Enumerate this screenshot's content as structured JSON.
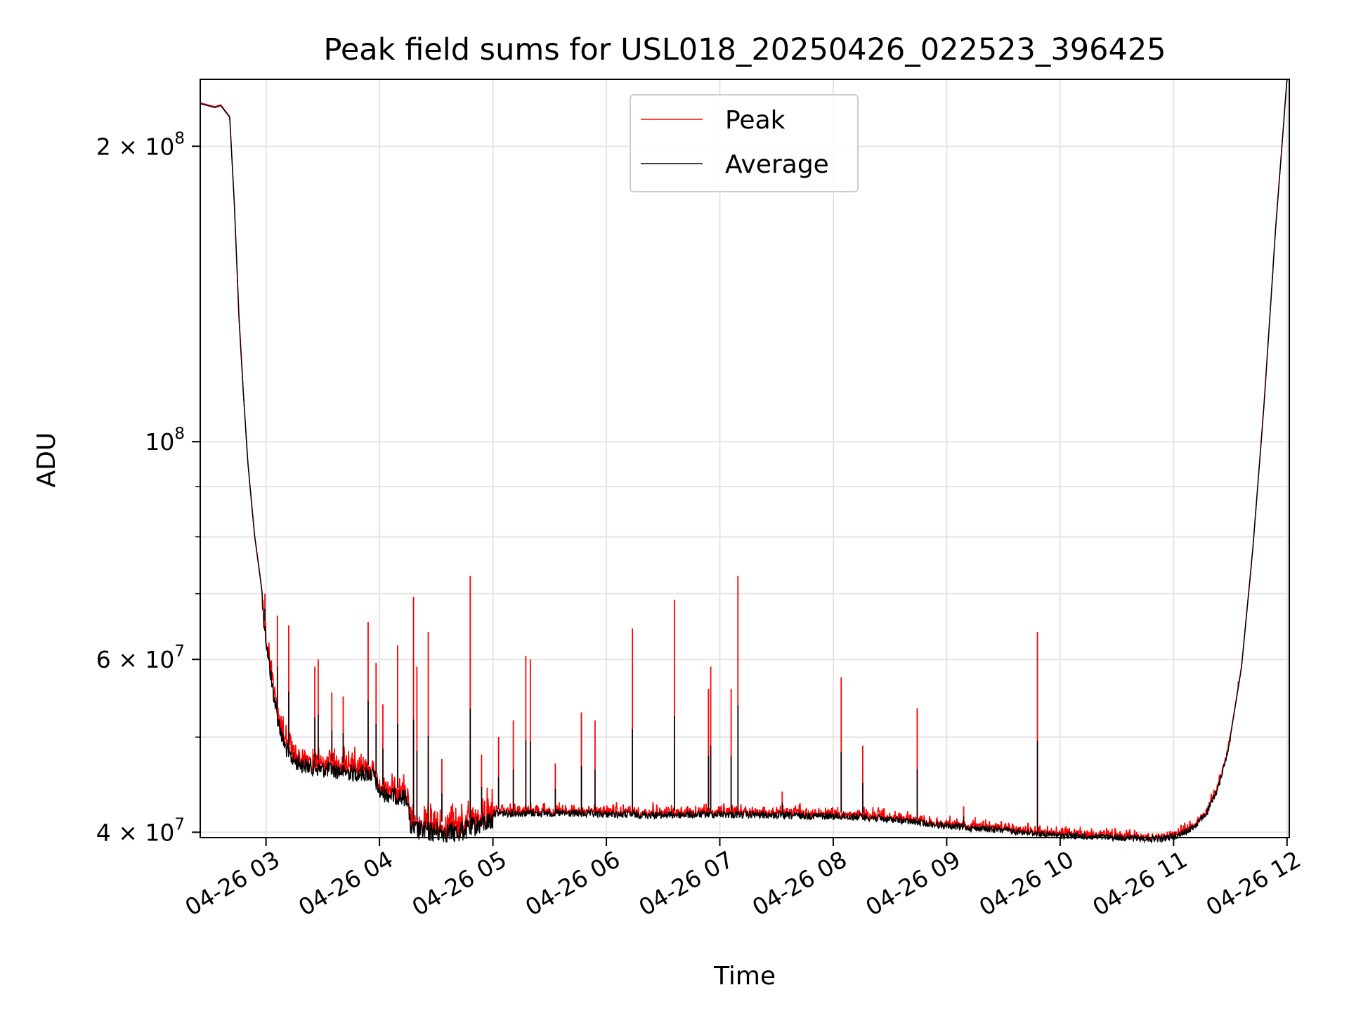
{
  "chart_data": {
    "type": "line",
    "title": "Peak field sums for USL018_20250426_022523_396425",
    "xlabel": "Time",
    "ylabel": "ADU",
    "yscale": "log",
    "ylim": [
      39500000,
      234000000
    ],
    "x_unit": "hours",
    "xlim_hours": [
      2.42,
      12.02
    ],
    "grid": true,
    "legend_position": "upper center",
    "x_ticks": [
      {
        "value": 3,
        "label": "04-26 03"
      },
      {
        "value": 4,
        "label": "04-26 04"
      },
      {
        "value": 5,
        "label": "04-26 05"
      },
      {
        "value": 6,
        "label": "04-26 06"
      },
      {
        "value": 7,
        "label": "04-26 07"
      },
      {
        "value": 8,
        "label": "04-26 08"
      },
      {
        "value": 9,
        "label": "04-26 09"
      },
      {
        "value": 10,
        "label": "04-26 10"
      },
      {
        "value": 11,
        "label": "04-26 11"
      },
      {
        "value": 12,
        "label": "04-26 12"
      }
    ],
    "y_ticks_major": [
      {
        "value": 40000000,
        "base": "4 × 10",
        "exp": "7"
      },
      {
        "value": 60000000,
        "base": "6 × 10",
        "exp": "7"
      },
      {
        "value": 100000000,
        "base": "10",
        "exp": "8"
      },
      {
        "value": 200000000,
        "base": "2 × 10",
        "exp": "8"
      }
    ],
    "y_ticks_minor": [
      50000000,
      70000000,
      80000000,
      90000000
    ],
    "series": [
      {
        "name": "Average",
        "color": "#000000",
        "x": [
          2.42,
          2.55,
          2.6,
          2.68,
          2.72,
          2.76,
          2.8,
          2.84,
          2.9,
          2.96,
          3.0,
          3.05,
          3.1,
          3.15,
          3.2,
          3.25,
          3.3,
          3.35,
          3.4,
          3.5,
          3.6,
          3.7,
          3.8,
          3.9,
          3.95,
          4.0,
          4.1,
          4.2,
          4.25,
          4.27,
          4.3,
          4.5,
          4.7,
          4.9,
          5.0,
          5.5,
          6.0,
          6.5,
          7.0,
          7.5,
          8.0,
          8.3,
          8.7,
          9.0,
          9.5,
          9.8,
          10.0,
          10.5,
          10.8,
          10.9,
          11.0,
          11.1,
          11.2,
          11.3,
          11.4,
          11.5,
          11.6,
          11.7,
          11.8,
          11.9,
          12.0,
          12.02
        ],
        "y": [
          221000000,
          219000000,
          220000000,
          214000000,
          175000000,
          135000000,
          112000000,
          95000000,
          80000000,
          71000000,
          64000000,
          58000000,
          53500000,
          50500000,
          49000000,
          48200000,
          47900000,
          47700000,
          47500000,
          47300000,
          47200000,
          47000000,
          46900000,
          46800000,
          46600000,
          44800000,
          44500000,
          44300000,
          44200000,
          41300000,
          41200000,
          41000000,
          41000000,
          41800000,
          42200000,
          42200000,
          42100000,
          42000000,
          42100000,
          42000000,
          41900000,
          41800000,
          41300000,
          40900000,
          40500000,
          40200000,
          40000000,
          39800000,
          39700000,
          39700000,
          39900000,
          40300000,
          41000000,
          42300000,
          45000000,
          50000000,
          59000000,
          78000000,
          110000000,
          165000000,
          234000000,
          238000000
        ]
      },
      {
        "name": "Peak",
        "color": "#ff0000",
        "spikes": [
          {
            "x": 2.99,
            "y": 70000000
          },
          {
            "x": 3.1,
            "y": 66500000
          },
          {
            "x": 3.2,
            "y": 65000000
          },
          {
            "x": 3.43,
            "y": 59000000
          },
          {
            "x": 3.46,
            "y": 60000000
          },
          {
            "x": 3.58,
            "y": 55500000
          },
          {
            "x": 3.68,
            "y": 55000000
          },
          {
            "x": 3.9,
            "y": 65500000
          },
          {
            "x": 3.97,
            "y": 59500000
          },
          {
            "x": 4.03,
            "y": 54000000
          },
          {
            "x": 4.16,
            "y": 62000000
          },
          {
            "x": 4.3,
            "y": 69500000
          },
          {
            "x": 4.33,
            "y": 59000000
          },
          {
            "x": 4.43,
            "y": 64000000
          },
          {
            "x": 4.55,
            "y": 47500000
          },
          {
            "x": 4.8,
            "y": 73000000
          },
          {
            "x": 4.9,
            "y": 48000000
          },
          {
            "x": 5.05,
            "y": 50000000
          },
          {
            "x": 5.18,
            "y": 52000000
          },
          {
            "x": 5.29,
            "y": 60500000
          },
          {
            "x": 5.33,
            "y": 60000000
          },
          {
            "x": 5.55,
            "y": 47000000
          },
          {
            "x": 5.78,
            "y": 53000000
          },
          {
            "x": 5.9,
            "y": 52000000
          },
          {
            "x": 6.23,
            "y": 64500000
          },
          {
            "x": 6.6,
            "y": 69000000
          },
          {
            "x": 6.9,
            "y": 56000000
          },
          {
            "x": 6.92,
            "y": 59000000
          },
          {
            "x": 7.1,
            "y": 56000000
          },
          {
            "x": 7.16,
            "y": 73000000
          },
          {
            "x": 7.55,
            "y": 44000000
          },
          {
            "x": 8.07,
            "y": 57500000
          },
          {
            "x": 8.26,
            "y": 49000000
          },
          {
            "x": 8.74,
            "y": 53500000
          },
          {
            "x": 9.15,
            "y": 42500000
          },
          {
            "x": 9.8,
            "y": 64000000
          },
          {
            "x": 11.57,
            "y": 57000000
          }
        ]
      }
    ]
  }
}
